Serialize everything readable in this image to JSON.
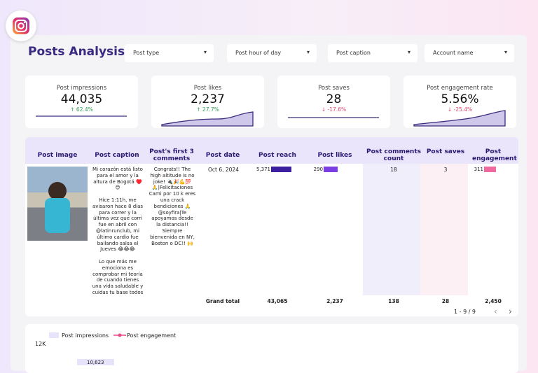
{
  "header": {
    "title": "Posts Analysis",
    "filters": [
      "Post type",
      "Post hour of day",
      "Post caption",
      "Account name"
    ]
  },
  "kpis": [
    {
      "label": "Post impressions",
      "value": "44,035",
      "change": "↑ 62.4%",
      "trend": "up"
    },
    {
      "label": "Post likes",
      "value": "2,237",
      "change": "↑ 27.7%",
      "trend": "up"
    },
    {
      "label": "Post saves",
      "value": "28",
      "change": "↓ -17.6%",
      "trend": "down"
    },
    {
      "label": "Post engagement rate",
      "value": "5.56%",
      "change": "↓ -25.4%",
      "trend": "down"
    }
  ],
  "table": {
    "headers": [
      "Post image",
      "Post caption",
      "Post's first 3 comments",
      "Post date",
      "Post reach",
      "Post likes",
      "Post comments count",
      "Post saves",
      "Post engagement"
    ],
    "rows": [
      {
        "caption": "Mi corazón está listo para el amor y la altura de Bogotá ♥️ 😊\n\nHice 1:11h, me avisaron hace 8 días para correr y la última vez que corrí fue en abril con @latinrunclub, mi último cardio fue bailando salsa el Jueves 😂😂😂\n\nLo que más me emociona es comprobar mi teoría de cuando tienes una vida saludable y cuidas tu base todos los días y por medio de data escuchas tu cuerpo, puedes hacer este tipo de",
        "comments": "Congrats!! The high altitude is no joke! 🔌🎉💪💯\n🙏|Felicitaciones Cami por 10 k eres una crack bendiciones 🙏 @soyfira|Te apoyamos desde la distancia!!\nSiempre bienvenida en NY, Boston o DC!! 🙌",
        "date": "Oct 6, 2024",
        "reach": "5,371",
        "likes": "290",
        "comments_count": "18",
        "saves": "3",
        "engagement": "311"
      }
    ],
    "total": {
      "label": "Grand total",
      "reach": "43,065",
      "likes": "2,237",
      "comments_count": "138",
      "saves": "28",
      "engagement": "2,450"
    },
    "pagination": "1 - 9 / 9"
  },
  "bottom": {
    "legend": [
      "Post impressions",
      "Post engagement"
    ],
    "axis_label": "12K",
    "bar_label": "10,623"
  }
}
